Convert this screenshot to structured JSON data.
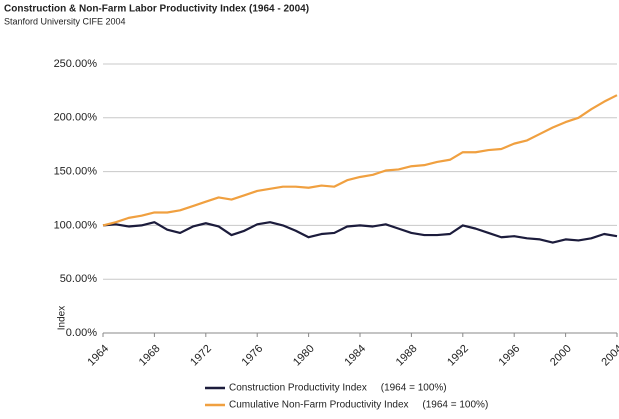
{
  "chart_data": {
    "type": "line",
    "title": "Construction & Non-Farm Labor Productivity Index (1964 - 2004)",
    "subtitle": "Stanford University CIFE 2004",
    "y_label": "Index",
    "x": [
      1964,
      1965,
      1966,
      1967,
      1968,
      1969,
      1970,
      1971,
      1972,
      1973,
      1974,
      1975,
      1976,
      1977,
      1978,
      1979,
      1980,
      1981,
      1982,
      1983,
      1984,
      1985,
      1986,
      1987,
      1988,
      1989,
      1990,
      1991,
      1992,
      1993,
      1994,
      1995,
      1996,
      1997,
      1998,
      1999,
      2000,
      2001,
      2002,
      2003,
      2004
    ],
    "series": [
      {
        "name": "Construction Productivity Index     (1964 = 100%)",
        "color": "#1c1c3c",
        "values": [
          100,
          101,
          99,
          100,
          103,
          96,
          93,
          99,
          102,
          99,
          91,
          95,
          101,
          103,
          100,
          95,
          89,
          92,
          93,
          99,
          100,
          99,
          101,
          97,
          93,
          91,
          91,
          92,
          100,
          97,
          93,
          89,
          90,
          88,
          87,
          84,
          87,
          86,
          88,
          92,
          90
        ]
      },
      {
        "name": "Cumulative Non-Farm Productivity Index     (1964 = 100%)",
        "color": "#f0a040",
        "values": [
          100,
          103,
          107,
          109,
          112,
          112,
          114,
          118,
          122,
          126,
          124,
          128,
          132,
          134,
          136,
          136,
          135,
          137,
          136,
          142,
          145,
          147,
          151,
          152,
          155,
          156,
          159,
          161,
          168,
          168,
          170,
          171,
          176,
          179,
          185,
          191,
          196,
          200,
          208,
          215,
          221
        ]
      }
    ],
    "xlim": [
      1964,
      2004
    ],
    "xticks": [
      1964,
      1968,
      1972,
      1976,
      1980,
      1984,
      1988,
      1992,
      1996,
      2000,
      2004
    ],
    "ylim": [
      0,
      250
    ],
    "yticks": [
      {
        "value": 0,
        "label": "0.00%"
      },
      {
        "value": 50,
        "label": "50.00%"
      },
      {
        "value": 100,
        "label": "100.00%"
      },
      {
        "value": 150,
        "label": "150.00%"
      },
      {
        "value": 200,
        "label": "200.00%"
      },
      {
        "value": 250,
        "label": "250.00%"
      }
    ],
    "grid": true
  }
}
